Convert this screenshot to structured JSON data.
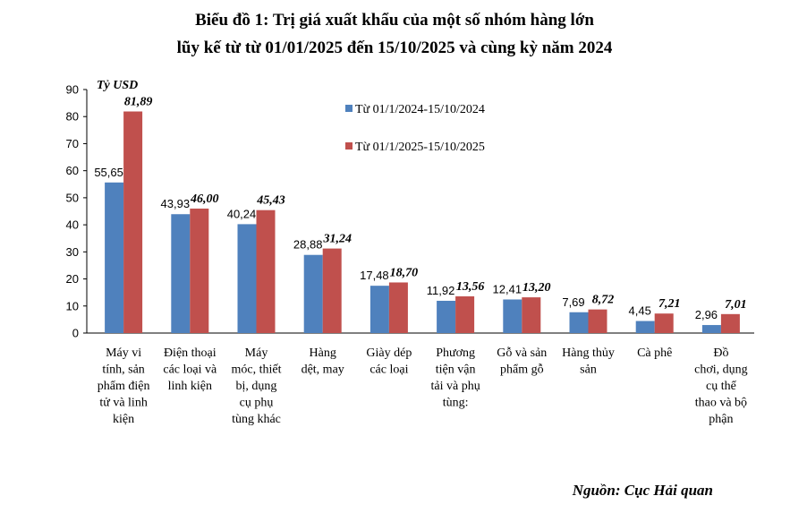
{
  "chart_data": {
    "type": "bar",
    "title_lines": [
      "Biểu đồ 1: Trị giá xuất khẩu của một số nhóm hàng lớn",
      "lũy kế từ từ 01/01/2025 đến 15/10/2025 và cùng kỳ năm 2024"
    ],
    "ylabel": "Tỷ USD",
    "ylim": [
      0,
      90
    ],
    "yticks": [
      "0",
      "10",
      "20",
      "30",
      "40",
      "50",
      "60",
      "70",
      "80",
      "90"
    ],
    "categories": [
      [
        "Máy vi",
        "tính, sản",
        "phẩm điện",
        "tử và linh",
        "kiện"
      ],
      [
        "Điện thoại",
        "các loại và",
        "linh kiện"
      ],
      [
        "Máy",
        "móc, thiết",
        "bị, dụng",
        "cụ phụ",
        "tùng khác"
      ],
      [
        "Hàng",
        "dệt, may"
      ],
      [
        "Giày dép",
        "các loại"
      ],
      [
        "Phương",
        "tiện vận",
        "tải và phụ",
        "tùng:"
      ],
      [
        "Gỗ và sản",
        "phẩm gỗ"
      ],
      [
        "Hàng thủy",
        "sản"
      ],
      [
        "Cà phê"
      ],
      [
        "Đồ",
        "chơi, dụng",
        "cụ thể",
        "thao và bộ",
        "phận"
      ]
    ],
    "series": [
      {
        "name": "Từ 01/1/2024-15/10/2024",
        "color": "#4F81BD",
        "values": [
          55.65,
          43.93,
          40.24,
          28.88,
          17.48,
          11.92,
          12.41,
          7.69,
          4.45,
          2.96
        ],
        "labels": [
          "55,65",
          "43,93",
          "40,24",
          "28,88",
          "17,48",
          "11,92",
          "12,41",
          "7,69",
          "4,45",
          "2,96"
        ]
      },
      {
        "name": "Từ 01/1/2025-15/10/2025",
        "color": "#C0504D",
        "values": [
          81.89,
          46.0,
          45.43,
          31.24,
          18.7,
          13.56,
          13.2,
          8.72,
          7.21,
          7.01
        ],
        "labels": [
          "81,89",
          "46,00",
          "45,43",
          "31,24",
          "18,70",
          "13,56",
          "13,20",
          "8,72",
          "7,21",
          "7,01"
        ]
      }
    ],
    "legend_position": "top-right",
    "grid": false,
    "source": "Nguồn: Cục Hải quan"
  }
}
